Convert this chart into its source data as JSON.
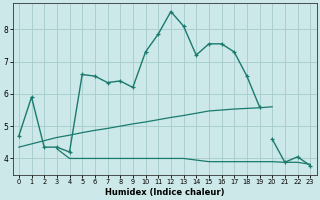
{
  "xlabel": "Humidex (Indice chaleur)",
  "bg_color": "#cce8e8",
  "grid_color": "#aacfcf",
  "line_color": "#1a7a6e",
  "line1_x": [
    0,
    1,
    2,
    3,
    4,
    5,
    6,
    7,
    8,
    9,
    10,
    11,
    12,
    13,
    14,
    15,
    16,
    17,
    18,
    19,
    20,
    21,
    22,
    23
  ],
  "line1_y": [
    4.7,
    5.9,
    4.35,
    4.35,
    4.2,
    6.6,
    6.55,
    6.35,
    6.4,
    6.2,
    7.3,
    7.85,
    8.55,
    8.1,
    7.2,
    7.55,
    7.55,
    7.3,
    6.55,
    5.6,
    null,
    null,
    null,
    null
  ],
  "line1_markers_x": [
    0,
    1,
    2,
    3,
    4,
    5,
    6,
    7,
    8,
    9,
    10,
    11,
    12,
    13,
    14,
    15,
    16,
    17,
    18,
    19
  ],
  "line2_x": [
    20,
    21,
    22,
    23
  ],
  "line2_y": [
    4.6,
    3.88,
    4.05,
    3.78
  ],
  "line3_x": [
    0,
    1,
    2,
    3,
    4,
    5,
    6,
    7,
    8,
    9,
    10,
    11,
    12,
    13,
    14,
    15,
    16,
    17,
    18,
    19,
    20
  ],
  "line3_y": [
    4.35,
    4.45,
    4.55,
    4.65,
    4.72,
    4.8,
    4.87,
    4.93,
    5.0,
    5.07,
    5.13,
    5.2,
    5.27,
    5.33,
    5.4,
    5.47,
    5.5,
    5.53,
    5.55,
    5.57,
    5.6
  ],
  "line4_x": [
    3,
    4,
    5,
    6,
    7,
    8,
    9,
    10,
    11,
    12,
    13,
    14,
    15,
    16,
    17,
    18,
    19,
    20,
    21,
    22,
    23
  ],
  "line4_y": [
    4.3,
    4.0,
    4.0,
    4.0,
    4.0,
    4.0,
    4.0,
    4.0,
    4.0,
    4.0,
    4.0,
    3.95,
    3.9,
    3.9,
    3.9,
    3.9,
    3.9,
    3.9,
    3.88,
    3.88,
    3.82
  ],
  "ylim": [
    3.5,
    8.8
  ],
  "xlim": [
    -0.5,
    23.5
  ],
  "yticks": [
    4,
    5,
    6,
    7,
    8
  ],
  "xticks": [
    0,
    1,
    2,
    3,
    4,
    5,
    6,
    7,
    8,
    9,
    10,
    11,
    12,
    13,
    14,
    15,
    16,
    17,
    18,
    19,
    20,
    21,
    22,
    23
  ]
}
